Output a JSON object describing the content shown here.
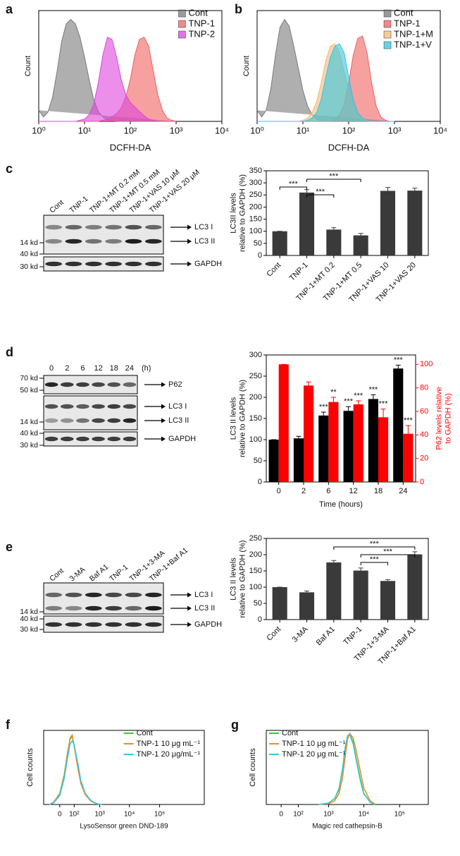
{
  "chart_data": [
    {
      "type": "area",
      "label": "a",
      "xlabel": "DCFH-DA",
      "ylabel": "Count",
      "xscale": "log",
      "legend": "upper right",
      "xlim": [
        1,
        10000
      ],
      "ylim": [
        0,
        100
      ],
      "xticks": [
        {
          "value": 1,
          "label": "10⁰"
        },
        {
          "value": 10,
          "label": "10¹"
        },
        {
          "value": 100,
          "label": "10²"
        },
        {
          "value": 1000,
          "label": "10³"
        },
        {
          "value": 10000,
          "label": "10⁴"
        }
      ],
      "x": [
        1,
        1.26,
        1.58,
        2,
        2.51,
        3.16,
        3.98,
        5.01,
        6.31,
        7.94,
        10,
        12.6,
        15.8,
        20,
        25.1,
        31.6,
        39.8,
        50.1,
        63.1,
        79.4,
        100,
        126,
        158,
        200,
        251,
        316,
        398,
        501,
        631,
        794,
        1000
      ],
      "series": [
        {
          "name": "Cont",
          "color": "#7a7a7a",
          "values": [
            10,
            4,
            8,
            22,
            45,
            72,
            88,
            92,
            88,
            76,
            58,
            38,
            20,
            9,
            4,
            1.5,
            0.5,
            0,
            0,
            0,
            0,
            0,
            0,
            0,
            0,
            0,
            0,
            0,
            0,
            0,
            0
          ]
        },
        {
          "name": "TNP-1",
          "color": "#f06060",
          "values": [
            0,
            0,
            0,
            0,
            0,
            0,
            0,
            0,
            0,
            0,
            0,
            0,
            0,
            0,
            1,
            2,
            4,
            7,
            12,
            22,
            38,
            60,
            74,
            76,
            68,
            46,
            24,
            10,
            3,
            1,
            0
          ]
        },
        {
          "name": "TNP-2",
          "color": "#dd44dd",
          "values": [
            0,
            0,
            0,
            0,
            0,
            0,
            0,
            0,
            0,
            1,
            2,
            6,
            15,
            35,
            60,
            76,
            74,
            58,
            38,
            24,
            17,
            13,
            9,
            5,
            2,
            1,
            0,
            0,
            0,
            0,
            0
          ]
        }
      ]
    },
    {
      "type": "area",
      "label": "b",
      "xlabel": "DCFH-DA",
      "ylabel": "Count",
      "xscale": "log",
      "legend": "upper right",
      "xlim": [
        1,
        10000
      ],
      "ylim": [
        0,
        100
      ],
      "xticks": [
        {
          "value": 1,
          "label": "10⁰"
        },
        {
          "value": 10,
          "label": "10¹"
        },
        {
          "value": 100,
          "label": "10²"
        },
        {
          "value": 1000,
          "label": "10³"
        },
        {
          "value": 10000,
          "label": "10⁴"
        }
      ],
      "x": [
        1,
        1.26,
        1.58,
        2,
        2.51,
        3.16,
        3.98,
        5.01,
        6.31,
        7.94,
        10,
        12.6,
        15.8,
        20,
        25.1,
        31.6,
        39.8,
        50.1,
        63.1,
        79.4,
        100,
        126,
        158,
        200,
        251,
        316,
        398,
        501,
        631,
        794,
        1000
      ],
      "series": [
        {
          "name": "Cont",
          "color": "#7a7a7a",
          "values": [
            10,
            4,
            10,
            30,
            60,
            85,
            92,
            86,
            68,
            48,
            28,
            14,
            6,
            2,
            0.5,
            0,
            0,
            0,
            0,
            0,
            0,
            0,
            0,
            0,
            0,
            0,
            0,
            0,
            0,
            0,
            0
          ]
        },
        {
          "name": "TNP-1",
          "color": "#f06060",
          "values": [
            0,
            0,
            0,
            0,
            0,
            0,
            0,
            0,
            0,
            0,
            0,
            0,
            0,
            0,
            0,
            0,
            0,
            2,
            6,
            15,
            35,
            60,
            75,
            77,
            62,
            35,
            14,
            4,
            1,
            0,
            0
          ]
        },
        {
          "name": "TNP-1+M",
          "color": "#f5b979",
          "values": [
            0,
            0,
            0,
            0,
            0,
            0,
            0,
            0,
            0,
            0,
            1,
            3,
            8,
            18,
            35,
            55,
            68,
            70,
            62,
            45,
            28,
            14,
            6,
            2,
            0.5,
            0,
            0,
            0,
            0,
            0,
            0
          ]
        },
        {
          "name": "TNP-1+V",
          "color": "#33c6e0",
          "values": [
            0,
            0,
            0,
            0,
            0,
            0,
            0,
            0,
            0,
            0,
            0,
            1,
            3,
            8,
            20,
            40,
            58,
            68,
            70,
            62,
            40,
            20,
            8,
            3,
            1,
            0,
            0,
            0,
            0,
            0,
            0
          ]
        }
      ]
    },
    {
      "type": "bar",
      "label": "c",
      "ylabel": [
        "LC3II levels",
        "relative to GAPDH (%)"
      ],
      "xtick_rotation": 45,
      "categories": [
        "Cont",
        "TNP-1",
        "TNP-1+MT 0.2",
        "TNP-1+MT 0.5",
        "TNP-1+VAS 10",
        "TNP-1+VAS 20"
      ],
      "values": [
        100,
        260,
        107,
        83,
        267,
        268
      ],
      "errors": [
        0,
        12,
        8,
        8,
        14,
        10
      ],
      "color": "#3a3a3a",
      "ylim": [
        0,
        350
      ],
      "yticks": [
        0,
        50,
        100,
        150,
        200,
        250,
        300,
        350
      ],
      "annotations": [
        {
          "text": "***",
          "from": "TNP-1",
          "to": "TNP-1+MT 0.5"
        },
        {
          "text": "***",
          "from": "Cont",
          "to": "TNP-1"
        },
        {
          "text": "***",
          "from": "TNP-1",
          "to": "TNP-1+MT 0.2"
        }
      ],
      "blot": {
        "columns": [
          "Cont",
          "TNP-1",
          "TNP-1+MT 0.2 mM",
          "TNP-1+MT 0.5 mM",
          "TNP-1+VAS 10 μM",
          "TNP-1+VAS 20 μM"
        ],
        "bands": [
          "LC3 I",
          "LC3 II",
          "GAPDH"
        ],
        "markers": [
          "14 kd",
          "40 kd",
          "30 kd"
        ]
      }
    },
    {
      "type": "bar",
      "label": "d",
      "xlabel": "Time (hours)",
      "ylabel": [
        "LC3 II levels",
        "relative to GAPDH (%)"
      ],
      "y2label": [
        "P62 levels relative",
        "to GAPDH (%)"
      ],
      "categories": [
        "0",
        "2",
        "6",
        "12",
        "18",
        "24"
      ],
      "series": [
        {
          "color": "#000000",
          "values": [
            100,
            103,
            157,
            168,
            196,
            268
          ],
          "errors": [
            0,
            5,
            8,
            10,
            10,
            8
          ],
          "significance": [
            null,
            null,
            "***",
            "***",
            "***",
            "***"
          ]
        },
        {
          "color": "#ff0000",
          "axis": "y2",
          "values": [
            100,
            82,
            68,
            66,
            55,
            41
          ],
          "errors": [
            0,
            3,
            4,
            3,
            7,
            7
          ],
          "significance": [
            null,
            null,
            "**",
            "***",
            "***",
            "***"
          ]
        }
      ],
      "ylim": [
        0,
        300
      ],
      "yticks": [
        0,
        50,
        100,
        150,
        200,
        250,
        300
      ],
      "y2lim": [
        0,
        108
      ],
      "y2ticks": [
        0,
        20,
        40,
        60,
        80,
        100
      ],
      "blot": {
        "columns": [
          "0",
          "2",
          "6",
          "12",
          "18",
          "24"
        ],
        "unit": "(h)",
        "bands": [
          "P62",
          "LC3 I",
          "LC3 II",
          "GAPDH"
        ],
        "markers": [
          "70 kd",
          "50 kd",
          "14 kd",
          "40 kd",
          "30 kd"
        ]
      }
    },
    {
      "type": "bar",
      "label": "e",
      "ylabel": [
        "LC3 II levels",
        "relative to GAPDH (%)"
      ],
      "xtick_rotation": 45,
      "categories": [
        "Cont",
        "3-MA",
        "Baf A1",
        "TNP-1",
        "TNP-1+3-MA",
        "TNP-1+Baf A1"
      ],
      "values": [
        100,
        84,
        176,
        151,
        119,
        201
      ],
      "errors": [
        0,
        4,
        6,
        8,
        4,
        8
      ],
      "color": "#3a3a3a",
      "ylim": [
        0,
        250
      ],
      "yticks": [
        0,
        50,
        100,
        150,
        200,
        250
      ],
      "annotations": [
        {
          "text": "***",
          "from": "Baf A1",
          "to": "TNP-1+Baf A1"
        },
        {
          "text": "***",
          "from": "TNP-1",
          "to": "TNP-1+Baf A1"
        },
        {
          "text": "***",
          "from": "TNP-1",
          "to": "TNP-1+3-MA"
        }
      ],
      "blot": {
        "columns": [
          "Cont",
          "3-MA",
          "Baf A1",
          "TNP-1",
          "TNP-1+3-MA",
          "TNP-1+Baf A1"
        ],
        "bands": [
          "LC3 I",
          "LC3 II",
          "GAPDH"
        ],
        "markers": [
          "14 kd",
          "40 kd",
          "30 kd"
        ]
      }
    },
    {
      "type": "line",
      "label": "f",
      "xlabel": "LysoSensor green DND-189",
      "ylabel": "Cell counts",
      "xscale": "biexponential",
      "legend": "upper right",
      "xlim": [
        -120,
        3000000
      ],
      "ylim": [
        0,
        100
      ],
      "xticks": [
        0,
        {
          "value": 100,
          "label": "10²"
        },
        {
          "value": 1000,
          "label": "10³"
        },
        {
          "value": 10000,
          "label": "10⁴"
        },
        {
          "value": 100000,
          "label": "10⁵"
        }
      ],
      "x": [
        -60,
        -30,
        0,
        20,
        40,
        60,
        80,
        100,
        150,
        200,
        300,
        500,
        800,
        1200
      ],
      "series": [
        {
          "name": "Cont",
          "color": "#33cc33",
          "values": [
            0,
            3,
            15,
            40,
            70,
            88,
            92,
            80,
            50,
            30,
            14,
            5,
            1,
            0
          ]
        },
        {
          "name": "TNP-1 10 μg mL⁻¹",
          "color": "#f08a24",
          "values": [
            0,
            3,
            14,
            38,
            68,
            90,
            94,
            78,
            48,
            28,
            13,
            4,
            1,
            0
          ]
        },
        {
          "name": "TNP-1 20 μg/mL⁻¹",
          "color": "#33c6e8",
          "values": [
            0,
            2,
            12,
            35,
            62,
            82,
            86,
            80,
            55,
            32,
            15,
            5,
            1,
            0
          ]
        }
      ]
    },
    {
      "type": "line",
      "label": "g",
      "xlabel": "Magic red cathepsin-B",
      "ylabel": "Cell counts",
      "xscale": "biexponential",
      "legend": "upper left",
      "xlim": [
        -80,
        630000
      ],
      "ylim": [
        0,
        100
      ],
      "xticks": [
        0,
        {
          "value": 100,
          "label": "10²"
        },
        {
          "value": 1000,
          "label": "10³"
        },
        {
          "value": 10000,
          "label": "10⁴"
        },
        {
          "value": 100000,
          "label": "10⁵"
        }
      ],
      "x": [
        500,
        1000,
        1500,
        2000,
        2500,
        3000,
        3500,
        4000,
        5000,
        6000,
        8000,
        10000,
        15000,
        20000
      ],
      "series": [
        {
          "name": "Cont",
          "color": "#33cc33",
          "values": [
            0,
            2,
            8,
            20,
            45,
            75,
            92,
            95,
            85,
            65,
            35,
            15,
            3,
            0
          ]
        },
        {
          "name": "TNP-1 10 μg mL⁻¹",
          "color": "#f08a24",
          "values": [
            0,
            1,
            5,
            15,
            35,
            65,
            88,
            96,
            90,
            75,
            45,
            22,
            5,
            1
          ]
        },
        {
          "name": "TNP-1 20 μg mL⁻¹",
          "color": "#33c6e8",
          "values": [
            0,
            2,
            8,
            22,
            48,
            78,
            93,
            94,
            82,
            62,
            32,
            14,
            3,
            0
          ]
        }
      ]
    }
  ]
}
